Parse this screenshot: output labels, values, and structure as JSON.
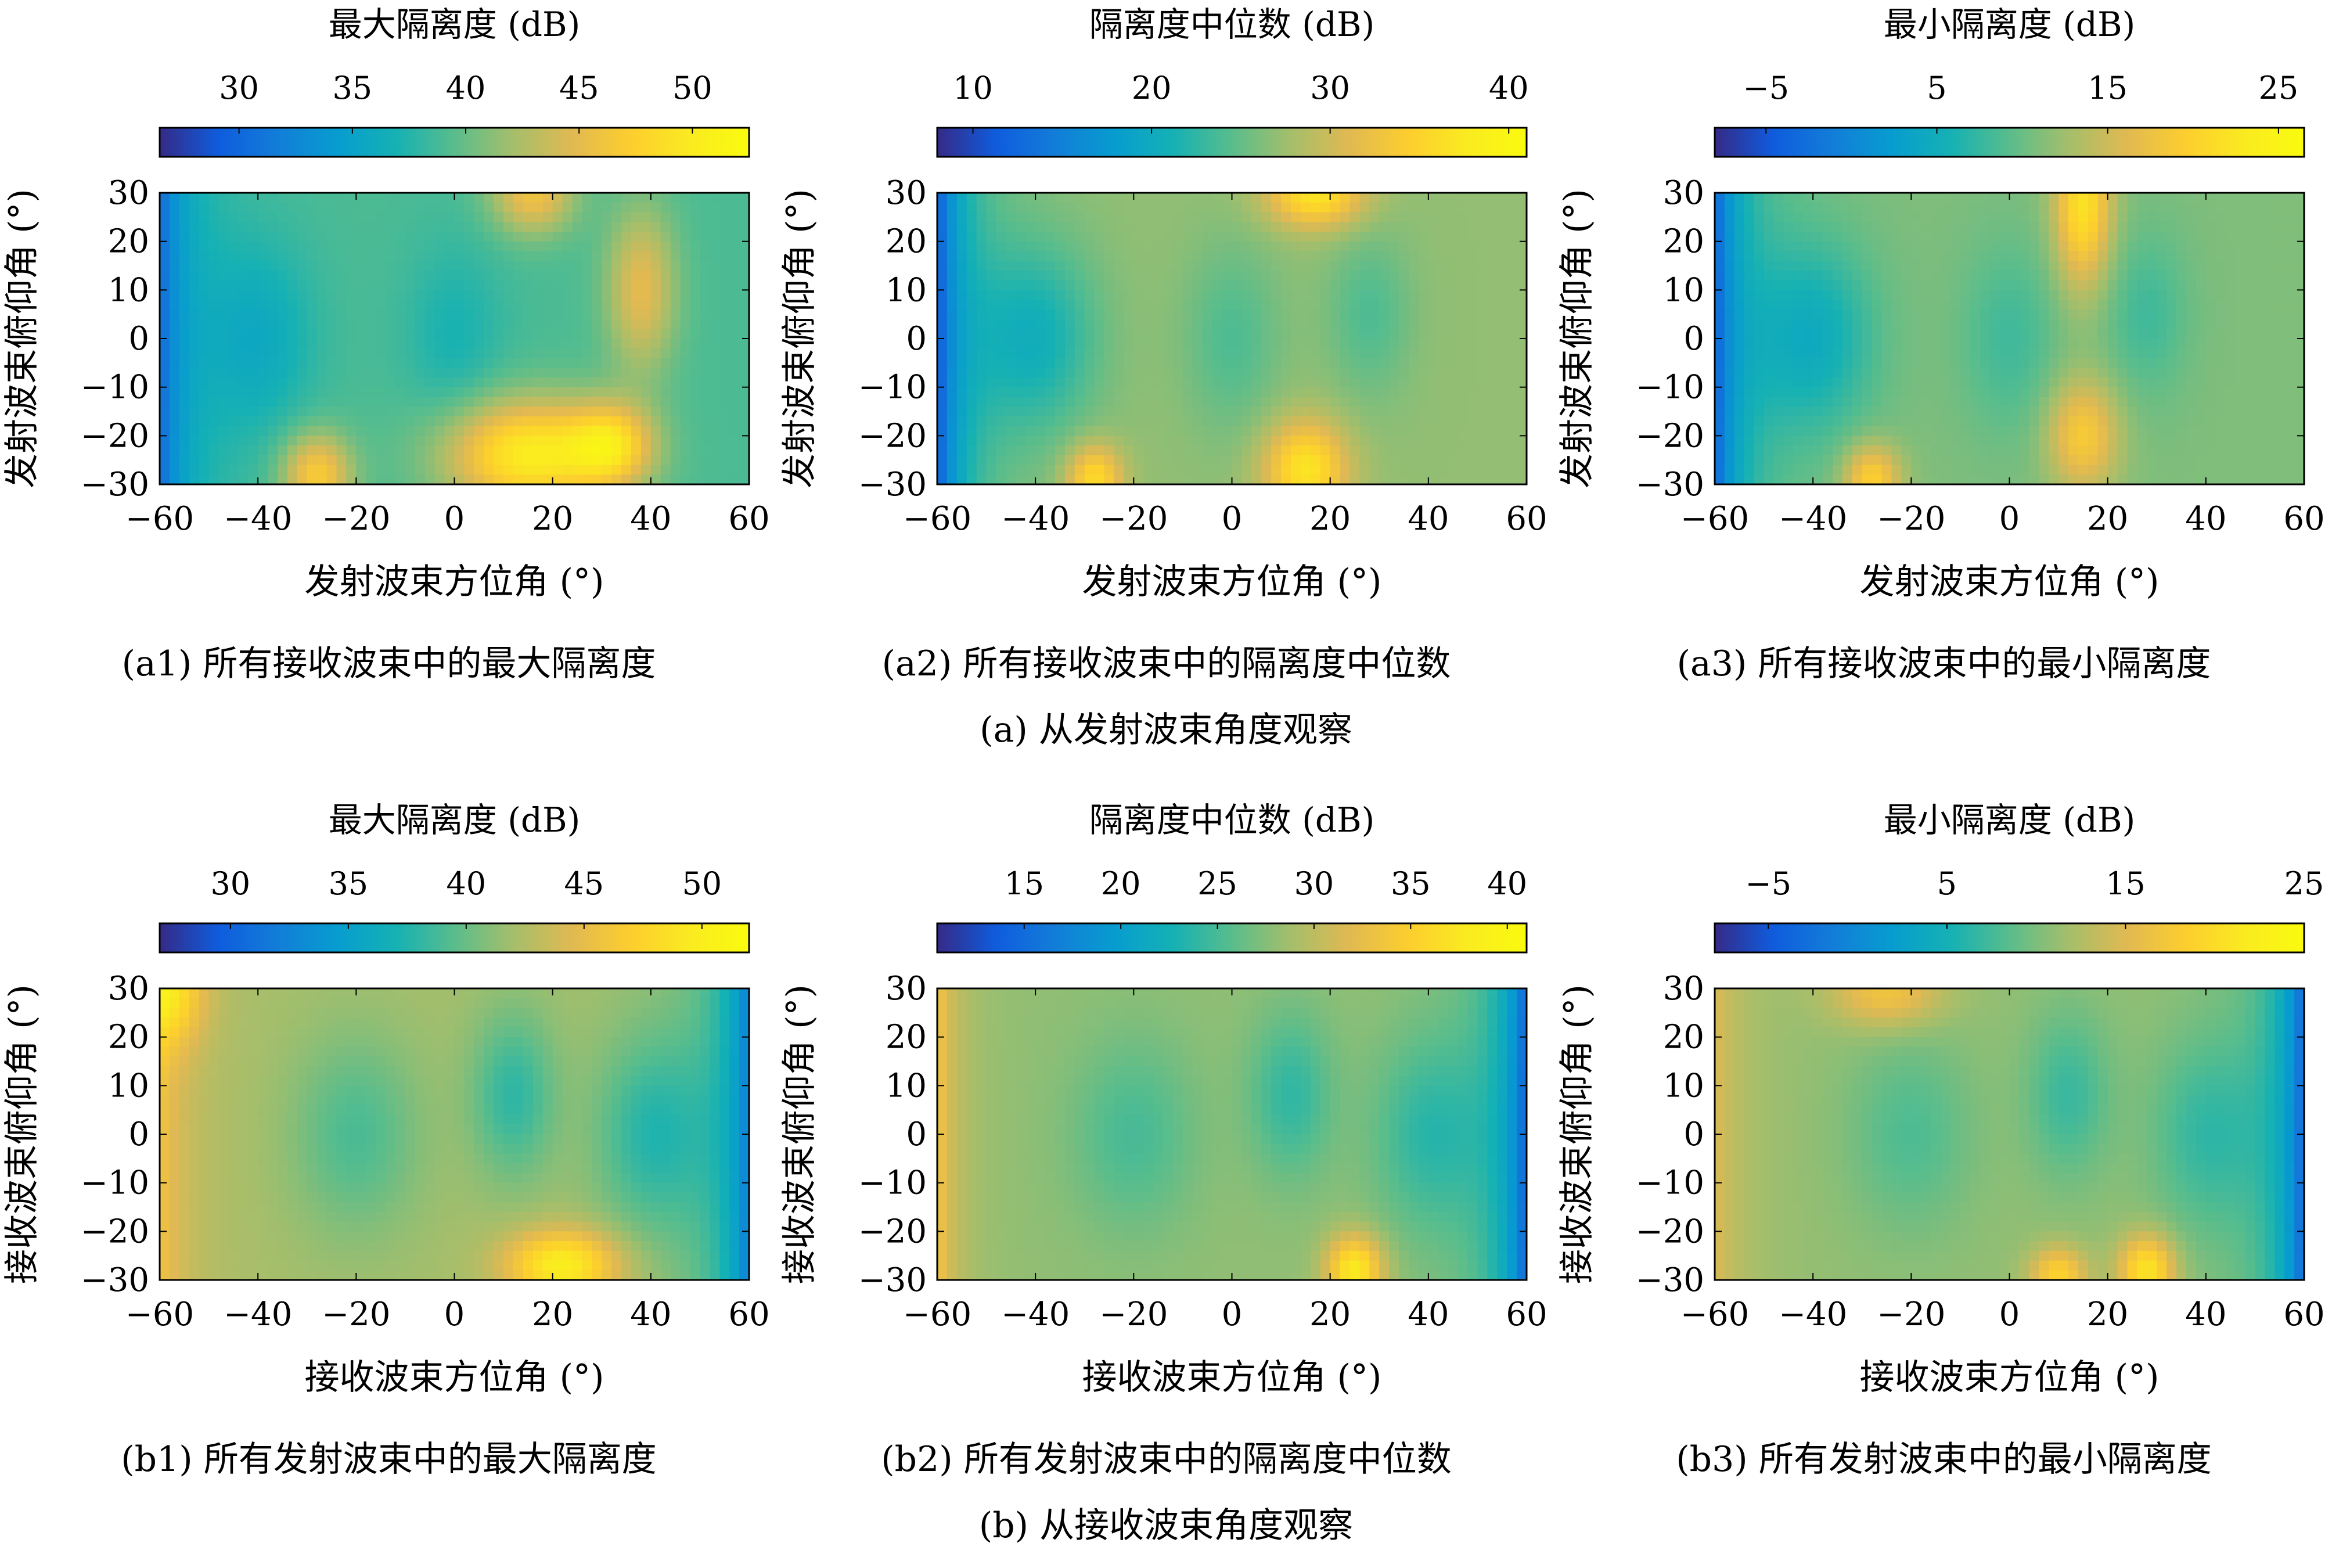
{
  "chart_data": [
    {
      "type": "heatmap",
      "panel": "a1",
      "title": "最大隔离度 (dB)",
      "xlabel": "发射波束方位角 (°)",
      "ylabel": "发射波束俯仰角 (°)",
      "caption": "(a1) 所有接收波束中的最大隔离度",
      "xlim": [
        -60,
        60
      ],
      "ylim": [
        -30,
        30
      ],
      "xticks": [
        "−60",
        "−40",
        "−20",
        "0",
        "20",
        "40",
        "60"
      ],
      "yticks": [
        "30",
        "20",
        "10",
        "0",
        "−10",
        "−20",
        "−30"
      ],
      "colorbar_ticks": [
        "30",
        "35",
        "40",
        "45",
        "50"
      ],
      "colorbar_values": [
        30,
        35,
        40,
        45,
        50
      ],
      "clim": [
        26.5,
        52.5
      ],
      "field": {
        "base": 39,
        "left_edge": -9,
        "right_edge": 0,
        "left_width": 6,
        "right_width": 5,
        "waves": [
          {
            "x": -40,
            "sx": 8,
            "sy": 14,
            "amp": -3,
            "y0": 0
          },
          {
            "x": -28,
            "sx": 5,
            "sy": 6,
            "amp": 8,
            "y0": -28
          },
          {
            "x": 15,
            "sx": 12,
            "sy": 8,
            "amp": 11,
            "y0": -24
          },
          {
            "x": 32,
            "sx": 6,
            "sy": 6,
            "amp": 8,
            "y0": -22
          },
          {
            "x": 16,
            "sx": 6,
            "sy": 6,
            "amp": 7,
            "y0": 30
          },
          {
            "x": 38,
            "sx": 5,
            "sy": 12,
            "amp": 6,
            "y0": 10
          },
          {
            "x": 0,
            "sx": 7,
            "sy": 14,
            "amp": -2,
            "y0": 0
          }
        ]
      }
    },
    {
      "type": "heatmap",
      "panel": "a2",
      "title": "隔离度中位数 (dB)",
      "xlabel": "发射波束方位角 (°)",
      "ylabel": "发射波束俯仰角 (°)",
      "caption": "(a2) 所有接收波束中的隔离度中位数",
      "xlim": [
        -60,
        60
      ],
      "ylim": [
        -30,
        30
      ],
      "xticks": [
        "−60",
        "−40",
        "−20",
        "0",
        "20",
        "40",
        "60"
      ],
      "yticks": [
        "30",
        "20",
        "10",
        "0",
        "−10",
        "−20",
        "−30"
      ],
      "colorbar_ticks": [
        "10",
        "20",
        "30",
        "40"
      ],
      "colorbar_values": [
        10,
        20,
        30,
        40
      ],
      "clim": [
        8,
        41
      ],
      "field": {
        "base": 27,
        "left_edge": -16,
        "right_edge": 0,
        "left_width": 6,
        "right_width": 5,
        "waves": [
          {
            "x": -40,
            "sx": 9,
            "sy": 14,
            "amp": -6,
            "y0": 0
          },
          {
            "x": -28,
            "sx": 4,
            "sy": 5,
            "amp": 9,
            "y0": -29
          },
          {
            "x": 15,
            "sx": 6,
            "sy": 7,
            "amp": 10,
            "y0": -27
          },
          {
            "x": 17,
            "sx": 7,
            "sy": 5,
            "amp": 10,
            "y0": 30
          },
          {
            "x": 28,
            "sx": 6,
            "sy": 12,
            "amp": -3,
            "y0": 5
          },
          {
            "x": 0,
            "sx": 7,
            "sy": 14,
            "amp": -3,
            "y0": 0
          }
        ]
      }
    },
    {
      "type": "heatmap",
      "panel": "a3",
      "title": "最小隔离度 (dB)",
      "xlabel": "发射波束方位角 (°)",
      "ylabel": "发射波束俯仰角 (°)",
      "caption": "(a3) 所有接收波束中的最小隔离度",
      "xlim": [
        -60,
        60
      ],
      "ylim": [
        -30,
        30
      ],
      "xticks": [
        "−60",
        "−40",
        "−20",
        "0",
        "20",
        "40",
        "60"
      ],
      "yticks": [
        "30",
        "20",
        "10",
        "0",
        "−10",
        "−20",
        "−30"
      ],
      "colorbar_ticks": [
        "−5",
        "5",
        "15",
        "25"
      ],
      "colorbar_values": [
        -5,
        5,
        15,
        25
      ],
      "clim": [
        -8,
        26.5
      ],
      "field": {
        "base": 11,
        "left_edge": -15,
        "right_edge": 0,
        "left_width": 6,
        "right_width": 5,
        "waves": [
          {
            "x": -40,
            "sx": 9,
            "sy": 14,
            "amp": -6,
            "y0": 0
          },
          {
            "x": -28,
            "sx": 4,
            "sy": 5,
            "amp": 9,
            "y0": -29
          },
          {
            "x": 15,
            "sx": 4,
            "sy": 12,
            "amp": 11,
            "y0": 28
          },
          {
            "x": 15,
            "sx": 5,
            "sy": 8,
            "amp": 8,
            "y0": -20
          },
          {
            "x": 28,
            "sx": 6,
            "sy": 12,
            "amp": -3,
            "y0": 5
          },
          {
            "x": 0,
            "sx": 7,
            "sy": 14,
            "amp": -3,
            "y0": 0
          }
        ]
      }
    },
    {
      "type": "heatmap",
      "panel": "b1",
      "title": "最大隔离度 (dB)",
      "xlabel": "接收波束方位角 (°)",
      "ylabel": "接收波束俯仰角 (°)",
      "caption": "(b1) 所有发射波束中的最大隔离度",
      "xlim": [
        -60,
        60
      ],
      "ylim": [
        -30,
        30
      ],
      "xticks": [
        "−60",
        "−40",
        "−20",
        "0",
        "20",
        "40",
        "60"
      ],
      "yticks": [
        "30",
        "20",
        "10",
        "0",
        "−10",
        "−20",
        "−30"
      ],
      "colorbar_ticks": [
        "30",
        "35",
        "40",
        "45",
        "50"
      ],
      "colorbar_values": [
        30,
        35,
        40,
        45,
        50
      ],
      "clim": [
        27,
        52
      ],
      "field": {
        "base": 42,
        "left_edge": 4,
        "right_edge": -10,
        "left_width": 6,
        "right_width": 7,
        "waves": [
          {
            "x": -20,
            "sx": 9,
            "sy": 14,
            "amp": -3,
            "y0": 0
          },
          {
            "x": 12,
            "sx": 6,
            "sy": 12,
            "amp": -4,
            "y0": 8
          },
          {
            "x": 40,
            "sx": 8,
            "sy": 14,
            "amp": -4,
            "y0": 0
          },
          {
            "x": 22,
            "sx": 8,
            "sy": 5,
            "amp": 8,
            "y0": -27
          },
          {
            "x": -58,
            "sx": 5,
            "sy": 8,
            "amp": 5,
            "y0": 30
          }
        ]
      }
    },
    {
      "type": "heatmap",
      "panel": "b2",
      "title": "隔离度中位数 (dB)",
      "xlabel": "接收波束方位角 (°)",
      "ylabel": "接收波束俯仰角 (°)",
      "caption": "(b2) 所有发射波束中的隔离度中位数",
      "xlim": [
        -60,
        60
      ],
      "ylim": [
        -30,
        30
      ],
      "xticks": [
        "−60",
        "−40",
        "−20",
        "0",
        "20",
        "40",
        "60"
      ],
      "yticks": [
        "30",
        "20",
        "10",
        "0",
        "−10",
        "−20",
        "−30"
      ],
      "colorbar_ticks": [
        "15",
        "20",
        "25",
        "30",
        "35",
        "40"
      ],
      "colorbar_values": [
        15,
        20,
        25,
        30,
        35,
        40
      ],
      "clim": [
        10.5,
        41
      ],
      "field": {
        "base": 28,
        "left_edge": 6,
        "right_edge": -14,
        "left_width": 4,
        "right_width": 6,
        "waves": [
          {
            "x": -20,
            "sx": 9,
            "sy": 14,
            "amp": -3,
            "y0": 0
          },
          {
            "x": 12,
            "sx": 6,
            "sy": 12,
            "amp": -4,
            "y0": 8
          },
          {
            "x": 40,
            "sx": 8,
            "sy": 14,
            "amp": -4,
            "y0": 0
          },
          {
            "x": 25,
            "sx": 4,
            "sy": 5,
            "amp": 10,
            "y0": -28
          }
        ]
      }
    },
    {
      "type": "heatmap",
      "panel": "b3",
      "title": "最小隔离度 (dB)",
      "xlabel": "接收波束方位角 (°)",
      "ylabel": "接收波束俯仰角 (°)",
      "caption": "(b3) 所有发射波束中的最小隔离度",
      "xlim": [
        -60,
        60
      ],
      "ylim": [
        -30,
        30
      ],
      "xticks": [
        "−60",
        "−40",
        "−20",
        "0",
        "20",
        "40",
        "60"
      ],
      "yticks": [
        "30",
        "20",
        "10",
        "0",
        "−10",
        "−20",
        "−30"
      ],
      "colorbar_ticks": [
        "−5",
        "5",
        "15",
        "25"
      ],
      "colorbar_values": [
        -5,
        5,
        15,
        25
      ],
      "clim": [
        -8,
        25
      ],
      "field": {
        "base": 11,
        "left_edge": 4,
        "right_edge": -15,
        "left_width": 6,
        "right_width": 6,
        "waves": [
          {
            "x": -20,
            "sx": 9,
            "sy": 14,
            "amp": -3,
            "y0": 0
          },
          {
            "x": 12,
            "sx": 6,
            "sy": 12,
            "amp": -4,
            "y0": 8
          },
          {
            "x": 40,
            "sx": 8,
            "sy": 14,
            "amp": -4,
            "y0": 0
          },
          {
            "x": 10,
            "sx": 4,
            "sy": 4,
            "amp": 8,
            "y0": -29
          },
          {
            "x": 28,
            "sx": 4,
            "sy": 5,
            "amp": 10,
            "y0": -28
          },
          {
            "x": -25,
            "sx": 8,
            "sy": 5,
            "amp": 6,
            "y0": 29
          }
        ]
      }
    }
  ],
  "groups": {
    "a_caption": "(a) 从发射波束角度观察",
    "b_caption": "(b) 从接收波束角度观察"
  },
  "colormap": "parula"
}
